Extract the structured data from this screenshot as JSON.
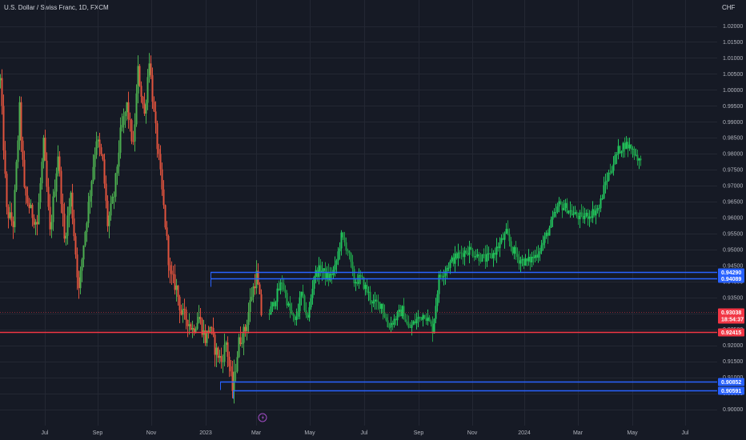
{
  "header": {
    "title": "U.S. Dollar / Swiss Franc, 1D, FXCM",
    "currency": "CHF"
  },
  "colors": {
    "background": "#161a25",
    "grid": "#232733",
    "up": "#26a69a",
    "down": "#ef5350",
    "projection": "#22c55e",
    "historical_up": "#4caf50",
    "historical_down": "#e0533d",
    "level_line": "#2962ff",
    "support_line": "#f23645",
    "axis_text": "#b2b5be"
  },
  "chart_data": {
    "type": "candlestick",
    "y_axis": {
      "ticks": [
        "1.02000",
        "1.01500",
        "1.01000",
        "1.00500",
        "1.00000",
        "0.99500",
        "0.99000",
        "0.98500",
        "0.98000",
        "0.97500",
        "0.97000",
        "0.96500",
        "0.96000",
        "0.95500",
        "0.95000",
        "0.94500",
        "0.94000",
        "0.93500",
        "0.93000",
        "0.92500",
        "0.92000",
        "0.91500",
        "0.91000",
        "0.90500",
        "0.90000"
      ],
      "range": [
        0.8975,
        1.0245
      ]
    },
    "x_axis": {
      "ticks": [
        "Jul",
        "Sep",
        "Nov",
        "2023",
        "Mar",
        "May",
        "Jul",
        "Sep",
        "Nov",
        "2024",
        "Mar",
        "May",
        "Jul"
      ]
    },
    "historical_series_anchors": [
      [
        0,
        1.003
      ],
      [
        8,
        0.962
      ],
      [
        16,
        0.958
      ],
      [
        24,
        0.994
      ],
      [
        30,
        0.968
      ],
      [
        38,
        0.962
      ],
      [
        46,
        0.958
      ],
      [
        54,
        0.983
      ],
      [
        62,
        0.955
      ],
      [
        72,
        0.98
      ],
      [
        80,
        0.953
      ],
      [
        88,
        0.967
      ],
      [
        98,
        0.937
      ],
      [
        104,
        0.952
      ],
      [
        112,
        0.968
      ],
      [
        120,
        0.985
      ],
      [
        128,
        0.977
      ],
      [
        134,
        0.958
      ],
      [
        142,
        0.967
      ],
      [
        150,
        0.986
      ],
      [
        158,
        0.995
      ],
      [
        166,
        0.982
      ],
      [
        172,
        1.006
      ],
      [
        180,
        0.992
      ],
      [
        186,
        1.01
      ],
      [
        192,
        0.992
      ],
      [
        198,
        0.978
      ],
      [
        206,
        0.958
      ],
      [
        212,
        0.942
      ],
      [
        220,
        0.938
      ],
      [
        226,
        0.93
      ],
      [
        234,
        0.928
      ],
      [
        240,
        0.925
      ],
      [
        248,
        0.929
      ],
      [
        256,
        0.922
      ],
      [
        262,
        0.926
      ],
      [
        268,
        0.919
      ],
      [
        276,
        0.915
      ],
      [
        282,
        0.921
      ],
      [
        290,
        0.906
      ],
      [
        298,
        0.921
      ],
      [
        306,
        0.925
      ],
      [
        314,
        0.936
      ],
      [
        320,
        0.942
      ],
      [
        326,
        0.93
      ]
    ],
    "projection_series_anchors": [
      [
        336,
        0.93
      ],
      [
        344,
        0.935
      ],
      [
        352,
        0.94
      ],
      [
        360,
        0.932
      ],
      [
        368,
        0.927
      ],
      [
        376,
        0.936
      ],
      [
        384,
        0.928
      ],
      [
        392,
        0.942
      ],
      [
        400,
        0.944
      ],
      [
        410,
        0.941
      ],
      [
        418,
        0.944
      ],
      [
        426,
        0.954
      ],
      [
        434,
        0.95
      ],
      [
        442,
        0.94
      ],
      [
        450,
        0.941
      ],
      [
        458,
        0.937
      ],
      [
        466,
        0.933
      ],
      [
        476,
        0.933
      ],
      [
        484,
        0.926
      ],
      [
        492,
        0.928
      ],
      [
        502,
        0.931
      ],
      [
        510,
        0.925
      ],
      [
        520,
        0.928
      ],
      [
        530,
        0.93
      ],
      [
        540,
        0.925
      ],
      [
        548,
        0.941
      ],
      [
        556,
        0.944
      ],
      [
        566,
        0.947
      ],
      [
        576,
        0.949
      ],
      [
        586,
        0.95
      ],
      [
        596,
        0.948
      ],
      [
        606,
        0.947
      ],
      [
        614,
        0.948
      ],
      [
        622,
        0.951
      ],
      [
        632,
        0.955
      ],
      [
        640,
        0.95
      ],
      [
        648,
        0.947
      ],
      [
        658,
        0.946
      ],
      [
        668,
        0.948
      ],
      [
        678,
        0.952
      ],
      [
        688,
        0.958
      ],
      [
        698,
        0.964
      ],
      [
        708,
        0.963
      ],
      [
        716,
        0.961
      ],
      [
        726,
        0.96
      ],
      [
        736,
        0.961
      ],
      [
        748,
        0.963
      ],
      [
        756,
        0.971
      ],
      [
        764,
        0.976
      ],
      [
        772,
        0.981
      ],
      [
        780,
        0.983
      ],
      [
        788,
        0.982
      ],
      [
        796,
        0.979
      ],
      [
        800,
        0.977
      ]
    ],
    "levels": [
      {
        "value": 0.9429,
        "label": "0.94290",
        "type": "resistance",
        "x_start": 263
      },
      {
        "value": 0.94089,
        "label": "0.94089",
        "type": "resistance",
        "x_start": 263
      },
      {
        "value": 0.92415,
        "label": "0.92415",
        "type": "support",
        "x_start": 0
      },
      {
        "value": 0.90852,
        "label": "0.90852",
        "type": "low-zone",
        "x_start": 275
      },
      {
        "value": 0.90591,
        "label": "0.90591",
        "type": "low-zone",
        "x_start": 291
      }
    ],
    "current_price": {
      "value": 0.93038,
      "label": "0.93038",
      "countdown": "18:54:37"
    }
  }
}
